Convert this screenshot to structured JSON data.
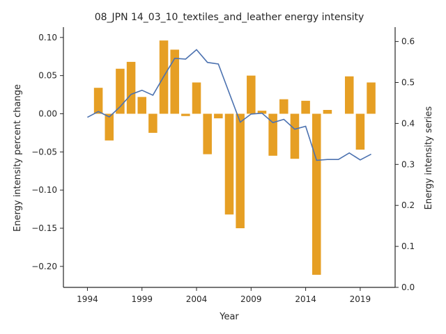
{
  "chart_data": {
    "type": "bar+line",
    "title": "08_JPN 14_03_10_textiles_and_leather energy intensity",
    "xlabel": "Year",
    "ylabel_left": "Energy intensity percent change",
    "ylabel_right": "Energy intensity series",
    "x": [
      1994,
      1995,
      1996,
      1997,
      1998,
      1999,
      2000,
      2001,
      2002,
      2003,
      2004,
      2005,
      2006,
      2007,
      2008,
      2009,
      2010,
      2011,
      2012,
      2013,
      2014,
      2015,
      2016,
      2017,
      2018,
      2019,
      2020
    ],
    "xlim": [
      1991.8,
      2022.2
    ],
    "xticks": [
      "1994",
      "1999",
      "2004",
      "2009",
      "2014",
      "2019"
    ],
    "bar_series": {
      "name": "Energy intensity percent change",
      "color": "#e69f24",
      "values": [
        null,
        0.034,
        -0.035,
        0.059,
        0.068,
        0.022,
        -0.025,
        0.096,
        0.084,
        -0.003,
        0.041,
        -0.053,
        -0.006,
        -0.132,
        -0.15,
        0.05,
        0.004,
        -0.055,
        0.019,
        -0.059,
        0.017,
        -0.211,
        0.005,
        null,
        0.049,
        -0.047,
        0.041
      ]
    },
    "line_series": {
      "name": "Energy intensity series",
      "color": "#4c72b0",
      "values": [
        0.415,
        0.429,
        0.416,
        0.441,
        0.471,
        0.481,
        0.469,
        0.515,
        0.559,
        0.557,
        0.58,
        0.549,
        0.545,
        0.474,
        0.403,
        0.423,
        0.425,
        0.402,
        0.41,
        0.386,
        0.393,
        0.31,
        0.312,
        0.312,
        0.328,
        0.311,
        0.325
      ]
    },
    "ylim_left": [
      -0.2275,
      0.1135
    ],
    "yticks_left": [
      "0.10",
      "0.05",
      "0.00",
      "−0.05",
      "−0.10",
      "−0.15",
      "−0.20"
    ],
    "ylim_right": [
      0.0,
      0.635
    ],
    "yticks_right": [
      "0.6",
      "0.5",
      "0.4",
      "0.3",
      "0.2",
      "0.1",
      "0.0"
    ],
    "grid": false
  }
}
